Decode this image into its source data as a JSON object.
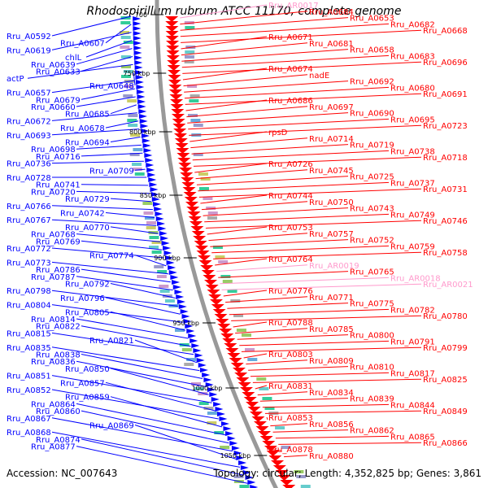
{
  "title": "Rhodospirillum rubrum ATCC 11170, complete genome",
  "footer": {
    "accession": "Accession: NC_007643",
    "summary": "Topology: circular; Length: 4,352,825 bp; Genes: 3,861"
  },
  "colors": {
    "forward": "#0000ff",
    "reverse": "#ff0000",
    "rna": "#ff99cc",
    "backbone": "#999999",
    "tick": "#2a8a2a"
  },
  "ticks": [
    {
      "label": "700",
      "kbp": 700
    },
    {
      "label": "750 kbp",
      "kbp": 750
    },
    {
      "label": "800 kbp",
      "kbp": 800
    },
    {
      "label": "850 kbp",
      "kbp": 850
    },
    {
      "label": "900 kbp",
      "kbp": 900
    },
    {
      "label": "950 kbp",
      "kbp": 950
    },
    {
      "label": "1000 kbp",
      "kbp": 1000
    },
    {
      "label": "1050 kbp",
      "kbp": 1050
    }
  ],
  "left_labels": [
    "Rru_A0592",
    "Rru_A0607",
    "Rru_A0619",
    "chlL",
    "Rru_A0639",
    "Rru_A0633",
    "actP",
    "Rru_A0648",
    "Rru_A0657",
    "Rru_A0679",
    "Rru_A0660",
    "Rru_A0685",
    "Rru_A0672",
    "Rru_A0678",
    "Rru_A0693",
    "Rru_A0694",
    "Rru_A0698",
    "Rru_A0716",
    "Rru_A0736",
    "Rru_A0709",
    "Rru_A0728",
    "Rru_A0741",
    "Rru_A0720",
    "Rru_A0729",
    "Rru_A0766",
    "Rru_A0742",
    "Rru_A0767",
    "Rru_A0770",
    "Rru_A0768",
    "Rru_A0769",
    "Rru_A0772",
    "Rru_A0774",
    "Rru_A0773",
    "Rru_A0786",
    "Rru_A0787",
    "Rru_A0792",
    "Rru_A0798",
    "Rru_A0796",
    "Rru_A0804",
    "Rru_A0805",
    "Rru_A0814",
    "Rru_A0822",
    "Rru_A0815",
    "Rru_A0821",
    "Rru_A0835",
    "Rru_A0838",
    "Rru_A0836",
    "Rru_A0850",
    "Rru_A0851",
    "Rru_A0857",
    "Rru_A0852",
    "Rru_A0859",
    "Rru_A0864",
    "Rru_A0860",
    "Rru_A0867",
    "Rru_A0869",
    "Rru_A0868",
    "Rru_A0874",
    "Rru_A0877"
  ],
  "right_labels": [
    {
      "text": "Rru_AR0017",
      "type": "rna"
    },
    {
      "text": "Rru_A0684",
      "type": "gene"
    },
    {
      "text": "Rru_A0653",
      "type": "gene"
    },
    {
      "text": "Rru_A0682",
      "type": "gene"
    },
    {
      "text": "Rru_A0668",
      "type": "gene"
    },
    {
      "text": "Rru_A0671",
      "type": "gene"
    },
    {
      "text": "Rru_A0681",
      "type": "gene"
    },
    {
      "text": "Rru_A0658",
      "type": "gene"
    },
    {
      "text": "Rru_A0683",
      "type": "gene"
    },
    {
      "text": "Rru_A0696",
      "type": "gene"
    },
    {
      "text": "Rru_A0674",
      "type": "gene"
    },
    {
      "text": "nadE",
      "type": "gene"
    },
    {
      "text": "Rru_A0692",
      "type": "gene"
    },
    {
      "text": "Rru_A0680",
      "type": "gene"
    },
    {
      "text": "Rru_A0691",
      "type": "gene"
    },
    {
      "text": "Rru_A0686",
      "type": "gene"
    },
    {
      "text": "Rru_A0697",
      "type": "gene"
    },
    {
      "text": "Rru_A0690",
      "type": "gene"
    },
    {
      "text": "Rru_A0695",
      "type": "gene"
    },
    {
      "text": "Rru_A0723",
      "type": "gene"
    },
    {
      "text": "rpsD",
      "type": "gene"
    },
    {
      "text": "Rru_A0714",
      "type": "gene"
    },
    {
      "text": "Rru_A0719",
      "type": "gene"
    },
    {
      "text": "Rru_A0738",
      "type": "gene"
    },
    {
      "text": "Rru_A0718",
      "type": "gene"
    },
    {
      "text": "Rru_A0726",
      "type": "gene"
    },
    {
      "text": "Rru_A0745",
      "type": "gene"
    },
    {
      "text": "Rru_A0725",
      "type": "gene"
    },
    {
      "text": "Rru_A0737",
      "type": "gene"
    },
    {
      "text": "Rru_A0731",
      "type": "gene"
    },
    {
      "text": "Rru_A0744",
      "type": "gene"
    },
    {
      "text": "Rru_A0750",
      "type": "gene"
    },
    {
      "text": "Rru_A0743",
      "type": "gene"
    },
    {
      "text": "Rru_A0749",
      "type": "gene"
    },
    {
      "text": "Rru_A0746",
      "type": "gene"
    },
    {
      "text": "Rru_A0753",
      "type": "gene"
    },
    {
      "text": "Rru_A0757",
      "type": "gene"
    },
    {
      "text": "Rru_A0752",
      "type": "gene"
    },
    {
      "text": "Rru_A0759",
      "type": "gene"
    },
    {
      "text": "Rru_A0758",
      "type": "gene"
    },
    {
      "text": "Rru_A0764",
      "type": "gene"
    },
    {
      "text": "Rru_AR0019",
      "type": "rna"
    },
    {
      "text": "Rru_A0765",
      "type": "gene"
    },
    {
      "text": "Rru_AR0018",
      "type": "rna"
    },
    {
      "text": "Rru_AR0021",
      "type": "rna"
    },
    {
      "text": "Rru_A0776",
      "type": "gene"
    },
    {
      "text": "Rru_A0771",
      "type": "gene"
    },
    {
      "text": "Rru_A0775",
      "type": "gene"
    },
    {
      "text": "Rru_A0782",
      "type": "gene"
    },
    {
      "text": "Rru_A0780",
      "type": "gene"
    },
    {
      "text": "Rru_A0788",
      "type": "gene"
    },
    {
      "text": "Rru_A0785",
      "type": "gene"
    },
    {
      "text": "Rru_A0800",
      "type": "gene"
    },
    {
      "text": "Rru_A0791",
      "type": "gene"
    },
    {
      "text": "Rru_A0799",
      "type": "gene"
    },
    {
      "text": "Rru_A0803",
      "type": "gene"
    },
    {
      "text": "Rru_A0809",
      "type": "gene"
    },
    {
      "text": "Rru_A0810",
      "type": "gene"
    },
    {
      "text": "Rru_A0817",
      "type": "gene"
    },
    {
      "text": "Rru_A0825",
      "type": "gene"
    },
    {
      "text": "Rru_A0831",
      "type": "gene"
    },
    {
      "text": "Rru_A0834",
      "type": "gene"
    },
    {
      "text": "Rru_A0839",
      "type": "gene"
    },
    {
      "text": "Rru_A0844",
      "type": "gene"
    },
    {
      "text": "Rru_A0849",
      "type": "gene"
    },
    {
      "text": "Rru_A0853",
      "type": "gene"
    },
    {
      "text": "Rru_A0856",
      "type": "gene"
    },
    {
      "text": "Rru_A0862",
      "type": "gene"
    },
    {
      "text": "Rru_A0865",
      "type": "gene"
    },
    {
      "text": "Rru_A0866",
      "type": "gene"
    },
    {
      "text": "Rru_A0878",
      "type": "gene"
    },
    {
      "text": "Rru_A0880",
      "type": "gene"
    }
  ]
}
